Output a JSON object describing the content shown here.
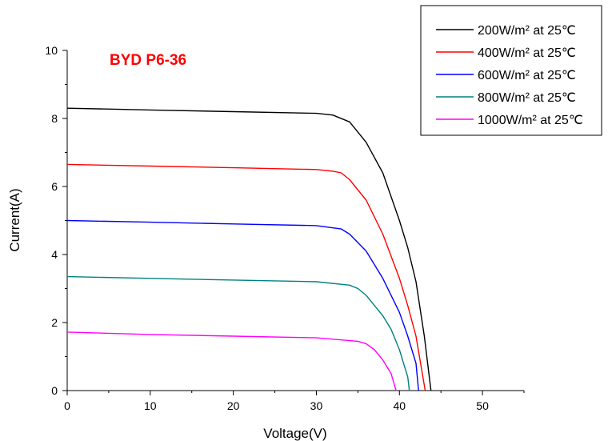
{
  "chart_data": {
    "type": "line",
    "title": "BYD P6-36",
    "title_color": "#ff0000",
    "xlabel": "Voltage(V)",
    "ylabel": "Current(A)",
    "xlim": [
      0,
      55
    ],
    "ylim": [
      0,
      10
    ],
    "x_ticks": [
      0,
      10,
      20,
      30,
      40,
      50
    ],
    "y_ticks": [
      0,
      2,
      4,
      6,
      8,
      10
    ],
    "x_tick_labels": [
      "0",
      "10",
      "20",
      "30",
      "40",
      "50"
    ],
    "y_tick_labels": [
      "0",
      "2",
      "4",
      "6",
      "8",
      "10"
    ],
    "grid": false,
    "legend_position": "top-right",
    "series": [
      {
        "name": "200W/m² at 25℃",
        "color": "#000000",
        "points": [
          [
            0,
            8.3
          ],
          [
            10,
            8.25
          ],
          [
            20,
            8.2
          ],
          [
            30,
            8.15
          ],
          [
            32,
            8.1
          ],
          [
            34,
            7.9
          ],
          [
            36,
            7.3
          ],
          [
            38,
            6.4
          ],
          [
            40,
            5.0
          ],
          [
            41,
            4.2
          ],
          [
            42,
            3.2
          ],
          [
            43,
            1.6
          ],
          [
            43.8,
            0.0
          ]
        ]
      },
      {
        "name": "400W/m² at 25℃",
        "color": "#ff0000",
        "points": [
          [
            0,
            6.65
          ],
          [
            10,
            6.6
          ],
          [
            20,
            6.55
          ],
          [
            30,
            6.5
          ],
          [
            32,
            6.45
          ],
          [
            33,
            6.4
          ],
          [
            34,
            6.2
          ],
          [
            36,
            5.6
          ],
          [
            38,
            4.6
          ],
          [
            40,
            3.3
          ],
          [
            41,
            2.5
          ],
          [
            42,
            1.6
          ],
          [
            43.1,
            0.0
          ]
        ]
      },
      {
        "name": "600W/m² at 25℃",
        "color": "#0000ff",
        "points": [
          [
            0,
            5.0
          ],
          [
            10,
            4.95
          ],
          [
            20,
            4.9
          ],
          [
            30,
            4.85
          ],
          [
            33,
            4.75
          ],
          [
            34,
            4.6
          ],
          [
            36,
            4.1
          ],
          [
            38,
            3.3
          ],
          [
            40,
            2.3
          ],
          [
            41,
            1.6
          ],
          [
            42,
            0.8
          ],
          [
            42.3,
            0.0
          ]
        ]
      },
      {
        "name": "800W/m² at 25℃",
        "color": "#008080",
        "points": [
          [
            0,
            3.35
          ],
          [
            10,
            3.3
          ],
          [
            20,
            3.25
          ],
          [
            30,
            3.2
          ],
          [
            34,
            3.1
          ],
          [
            35,
            3.0
          ],
          [
            36,
            2.8
          ],
          [
            38,
            2.2
          ],
          [
            39,
            1.8
          ],
          [
            40,
            1.2
          ],
          [
            41,
            0.4
          ],
          [
            41.2,
            0.0
          ]
        ]
      },
      {
        "name": "1000W/m² at 25℃",
        "color": "#ff00ff",
        "points": [
          [
            0,
            1.72
          ],
          [
            10,
            1.65
          ],
          [
            20,
            1.6
          ],
          [
            30,
            1.55
          ],
          [
            35,
            1.45
          ],
          [
            36,
            1.38
          ],
          [
            37,
            1.2
          ],
          [
            38,
            0.9
          ],
          [
            39,
            0.5
          ],
          [
            39.6,
            0.0
          ]
        ]
      }
    ]
  }
}
